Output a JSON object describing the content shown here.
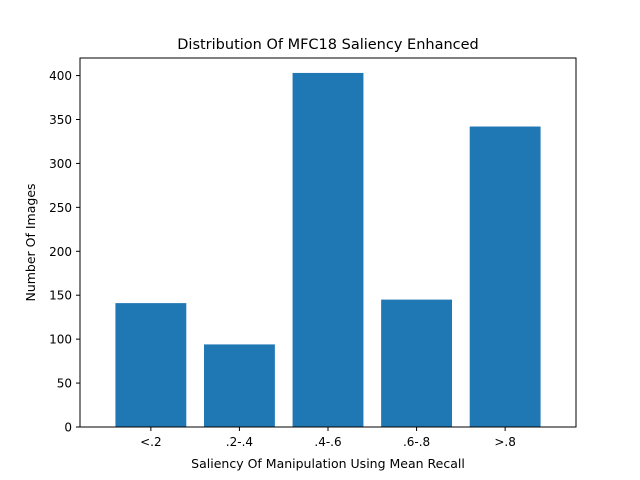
{
  "chart_data": {
    "type": "bar",
    "title": "Distribution Of MFC18 Saliency Enhanced",
    "xlabel": "Saliency Of Manipulation Using Mean Recall",
    "ylabel": "Number Of Images",
    "categories": [
      "<.2",
      ".2-.4",
      ".4-.6",
      ".6-.8",
      ">.8"
    ],
    "values": [
      141,
      94,
      403,
      145,
      342
    ],
    "ylim": [
      0,
      420
    ],
    "yticks": [
      0,
      50,
      100,
      150,
      200,
      250,
      300,
      350,
      400
    ],
    "bar_color": "#1f77b4",
    "grid": false,
    "legend": "none"
  }
}
